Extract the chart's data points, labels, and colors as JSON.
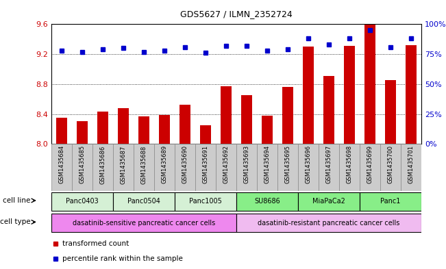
{
  "title": "GDS5627 / ILMN_2352724",
  "samples": [
    "GSM1435684",
    "GSM1435685",
    "GSM1435686",
    "GSM1435687",
    "GSM1435688",
    "GSM1435689",
    "GSM1435690",
    "GSM1435691",
    "GSM1435692",
    "GSM1435693",
    "GSM1435694",
    "GSM1435695",
    "GSM1435696",
    "GSM1435697",
    "GSM1435698",
    "GSM1435699",
    "GSM1435700",
    "GSM1435701"
  ],
  "transformed_count": [
    8.35,
    8.3,
    8.43,
    8.48,
    8.37,
    8.39,
    8.52,
    8.25,
    8.77,
    8.65,
    8.38,
    8.76,
    9.3,
    8.91,
    9.31,
    9.59,
    8.85,
    9.32
  ],
  "percentile_rank": [
    78,
    77,
    79,
    80,
    77,
    78,
    81,
    76,
    82,
    82,
    78,
    79,
    88,
    83,
    88,
    95,
    81,
    88
  ],
  "cell_line_groups": [
    {
      "label": "Panc0403",
      "start": 0,
      "end": 2,
      "color": "#d5f0d5"
    },
    {
      "label": "Panc0504",
      "start": 3,
      "end": 5,
      "color": "#d5f0d5"
    },
    {
      "label": "Panc1005",
      "start": 6,
      "end": 8,
      "color": "#d5f0d5"
    },
    {
      "label": "SU8686",
      "start": 9,
      "end": 11,
      "color": "#88ee88"
    },
    {
      "label": "MiaPaCa2",
      "start": 12,
      "end": 14,
      "color": "#88ee88"
    },
    {
      "label": "Panc1",
      "start": 15,
      "end": 17,
      "color": "#88ee88"
    }
  ],
  "cell_type_groups": [
    {
      "label": "dasatinib-sensitive pancreatic cancer cells",
      "start": 0,
      "end": 8,
      "color": "#ee88ee"
    },
    {
      "label": "dasatinib-resistant pancreatic cancer cells",
      "start": 9,
      "end": 17,
      "color": "#f0bbf0"
    }
  ],
  "ylim_left": [
    8.0,
    9.6
  ],
  "ylim_right": [
    0,
    100
  ],
  "yticks_left": [
    8.0,
    8.4,
    8.8,
    9.2,
    9.6
  ],
  "yticks_right": [
    0,
    25,
    50,
    75,
    100
  ],
  "bar_color": "#cc0000",
  "dot_color": "#0000cc",
  "bar_width": 0.55,
  "background_color": "#ffffff",
  "grid_color": "#000000",
  "tick_label_color_left": "#cc0000",
  "tick_label_color_right": "#0000cc",
  "sample_bg_color": "#cccccc",
  "legend_items": [
    {
      "label": "transformed count",
      "color": "#cc0000",
      "marker": "s"
    },
    {
      "label": "percentile rank within the sample",
      "color": "#0000cc",
      "marker": "s"
    }
  ]
}
